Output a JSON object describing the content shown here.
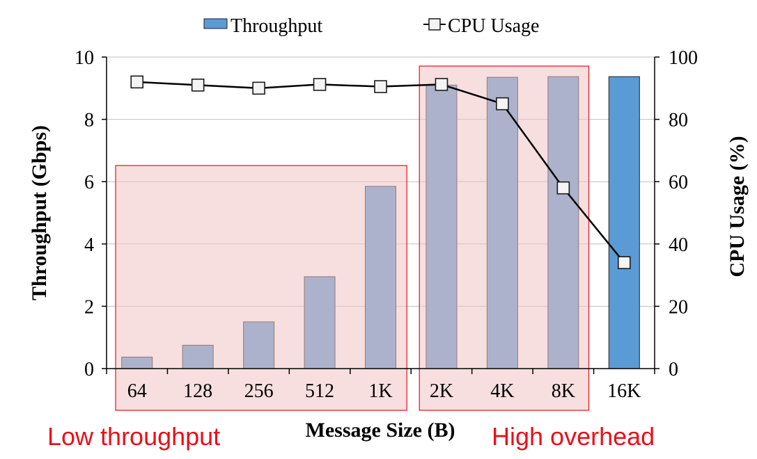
{
  "chart_data": {
    "type": "bar",
    "xlabel": "Message Size (B)",
    "ylabel": "Throughput (Gbps)",
    "y2label": "CPU Usage (%)",
    "categories": [
      "64",
      "128",
      "256",
      "512",
      "1K",
      "2K",
      "4K",
      "8K",
      "16K"
    ],
    "ylim": [
      0,
      10
    ],
    "y2lim": [
      0,
      100
    ],
    "yticks": [
      "0",
      "2",
      "4",
      "6",
      "8",
      "10"
    ],
    "y2ticks": [
      "0",
      "20",
      "40",
      "60",
      "80",
      "100"
    ],
    "grid": true,
    "legend_position": "top",
    "series": [
      {
        "name": "Throughput",
        "kind": "bar",
        "axis": "left",
        "color": "#5b9bd5",
        "values": [
          0.37,
          0.75,
          1.5,
          2.95,
          5.85,
          9.1,
          9.35,
          9.37,
          9.37
        ]
      },
      {
        "name": "CPU Usage",
        "kind": "line",
        "axis": "right",
        "marker": "square",
        "color": "#000000",
        "values": [
          92,
          91,
          90,
          91.2,
          90.5,
          91.2,
          85,
          58,
          34
        ]
      }
    ],
    "annotations": [
      {
        "text": "Low throughput",
        "color": "#e8101a",
        "covers": [
          "64",
          "128",
          "256",
          "512",
          "1K"
        ]
      },
      {
        "text": "High overhead",
        "color": "#e8101a",
        "covers": [
          "2K",
          "4K",
          "8K"
        ]
      }
    ],
    "highlight_fill": "#f0c4c4",
    "highlight_stroke": "#e8101a"
  }
}
